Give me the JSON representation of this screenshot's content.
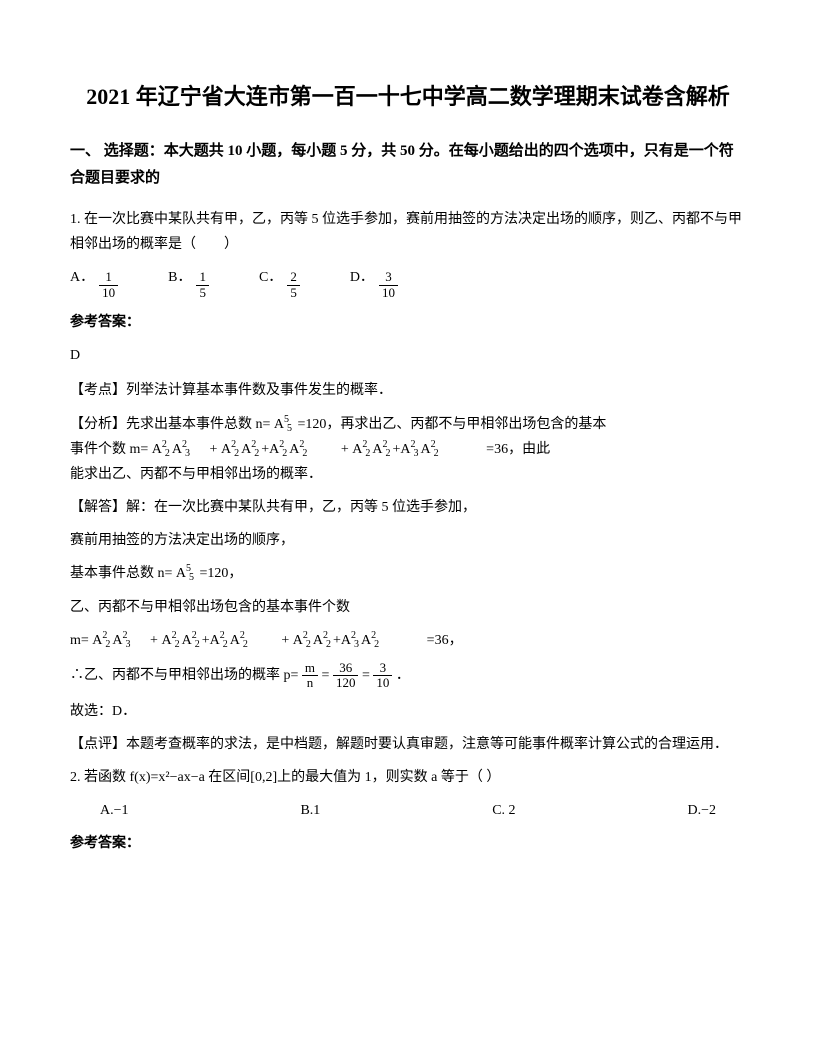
{
  "title": "2021 年辽宁省大连市第一百一十七中学高二数学理期末试卷含解析",
  "section1": {
    "header": "一、 选择题：本大题共 10 小题，每小题 5 分，共 50 分。在每小题给出的四个选项中，只有是一个符合题目要求的"
  },
  "q1": {
    "text": "1. 在一次比赛中某队共有甲，乙，丙等 5 位选手参加，赛前用抽签的方法决定出场的顺序，则乙、丙都不与甲相邻出场的概率是（　　）",
    "optA_label": "A．",
    "optA_num": "1",
    "optA_den": "10",
    "optB_label": "B．",
    "optB_num": "1",
    "optB_den": "5",
    "optC_label": "C．",
    "optC_num": "2",
    "optC_den": "5",
    "optD_label": "D．",
    "optD_num": "3",
    "optD_den": "10",
    "answer_label": "参考答案：",
    "answer": "D",
    "kaodian": "【考点】列举法计算基本事件数及事件发生的概率．",
    "fenxi_1": "【分析】先求出基本事件总数 n=",
    "fenxi_2": "=120，再求出乙、丙都不与甲相邻出场包含的基本",
    "fenxi_3": "事件个数 m=",
    "fenxi_4": "+",
    "fenxi_5": "+",
    "fenxi_6": "=36，由此",
    "fenxi_7": "能求出乙、丙都不与甲相邻出场的概率．",
    "jieda_1": "【解答】解：在一次比赛中某队共有甲，乙，丙等 5 位选手参加，",
    "jieda_2": "赛前用抽签的方法决定出场的顺序，",
    "jieda_3": "基本事件总数 n=",
    "jieda_4": "=120，",
    "jieda_5": "乙、丙都不与甲相邻出场包含的基本事件个数",
    "jieda_6": "m=",
    "jieda_7": "+",
    "jieda_8": "+",
    "jieda_9": "=36，",
    "jieda_10": "∴乙、丙都不与甲相邻出场的概率 p=",
    "jieda_10_m": "m",
    "jieda_10_n": "n",
    "jieda_10_eq": "=",
    "jieda_10_num1": "36",
    "jieda_10_den1": "120",
    "jieda_10_eq2": "=",
    "jieda_10_num2": "3",
    "jieda_10_den2": "10",
    "jieda_11": "．",
    "jieda_12": "故选：D．",
    "dianping": "【点评】本题考查概率的求法，是中档题，解题时要认真审题，注意等可能事件概率计算公式的合理运用．",
    "perm_A55": "A",
    "perm_5a": "5",
    "perm_5b": "5",
    "perm_A22": "A",
    "perm_2a": "2",
    "perm_2b": "2",
    "perm_A32": "A",
    "perm_3a": "2",
    "perm_3b": "3"
  },
  "q2": {
    "text": "2. 若函数 f(x)=x²−ax−a 在区间[0,2]上的最大值为 1，则实数 a 等于（  ）",
    "optA": "A.−1",
    "optB": "B.1",
    "optC": "C. 2",
    "optD": "D.−2",
    "answer_label": "参考答案："
  }
}
